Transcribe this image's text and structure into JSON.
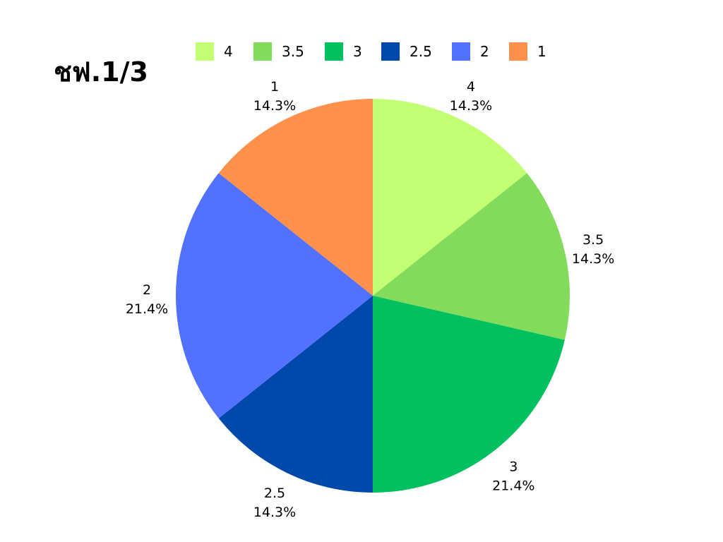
{
  "chart_data": {
    "type": "pie",
    "title": "ชฟ.1/3",
    "legend_position": "top",
    "slices": [
      {
        "label": "4",
        "percent_label": "14.3%",
        "value": 14.3,
        "color": "#C3FF73"
      },
      {
        "label": "3.5",
        "percent_label": "14.3%",
        "value": 14.3,
        "color": "#82DB5A"
      },
      {
        "label": "3",
        "percent_label": "21.4%",
        "value": 21.4,
        "color": "#00C060"
      },
      {
        "label": "2.5",
        "percent_label": "14.3%",
        "value": 14.3,
        "color": "#0049AA"
      },
      {
        "label": "2",
        "percent_label": "21.4%",
        "value": 21.4,
        "color": "#5271FF"
      },
      {
        "label": "1",
        "percent_label": "14.3%",
        "value": 14.3,
        "color": "#FF914D"
      }
    ]
  }
}
